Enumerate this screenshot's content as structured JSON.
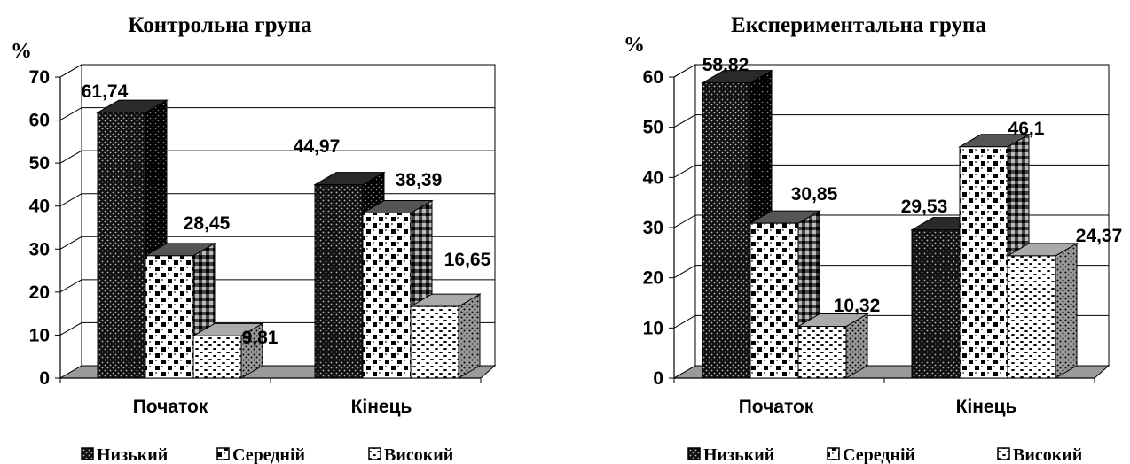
{
  "colors": {
    "ink": "#000000",
    "floor": "#9a9a9a",
    "background": "#ffffff"
  },
  "chart_data": [
    {
      "type": "bar",
      "title": "Контрольна група",
      "ylabel": "%",
      "ylim": [
        0,
        70
      ],
      "yticks": [
        "0",
        "10",
        "20",
        "30",
        "40",
        "50",
        "60",
        "70"
      ],
      "categories": [
        "Початок",
        "Кінець"
      ],
      "grid": true,
      "legend": "bottom",
      "series": [
        {
          "name": "Низький",
          "values": [
            61.74,
            44.97
          ],
          "labels": [
            "61,74",
            "44,97"
          ],
          "pattern": "dots-dark"
        },
        {
          "name": "Середній",
          "values": [
            28.45,
            38.39
          ],
          "labels": [
            "28,45",
            "38,39"
          ],
          "pattern": "checker"
        },
        {
          "name": "Високий",
          "values": [
            9.81,
            16.65
          ],
          "labels": [
            "9,81",
            "16,65"
          ],
          "pattern": "speckle"
        }
      ]
    },
    {
      "type": "bar",
      "title": "Експериментальна група",
      "ylabel": "%",
      "ylim": [
        0,
        60
      ],
      "yticks": [
        "0",
        "10",
        "20",
        "30",
        "40",
        "50",
        "60"
      ],
      "categories": [
        "Початок",
        "Кінець"
      ],
      "grid": true,
      "legend": "bottom",
      "series": [
        {
          "name": "Низький",
          "values": [
            58.82,
            29.53
          ],
          "labels": [
            "58,82",
            "29,53"
          ],
          "pattern": "dots-dark"
        },
        {
          "name": "Середній",
          "values": [
            30.85,
            46.1
          ],
          "labels": [
            "30,85",
            "46,1"
          ],
          "pattern": "checker"
        },
        {
          "name": "Високий",
          "values": [
            10.32,
            24.37
          ],
          "labels": [
            "10,32",
            "24,37"
          ],
          "pattern": "speckle"
        }
      ]
    }
  ]
}
